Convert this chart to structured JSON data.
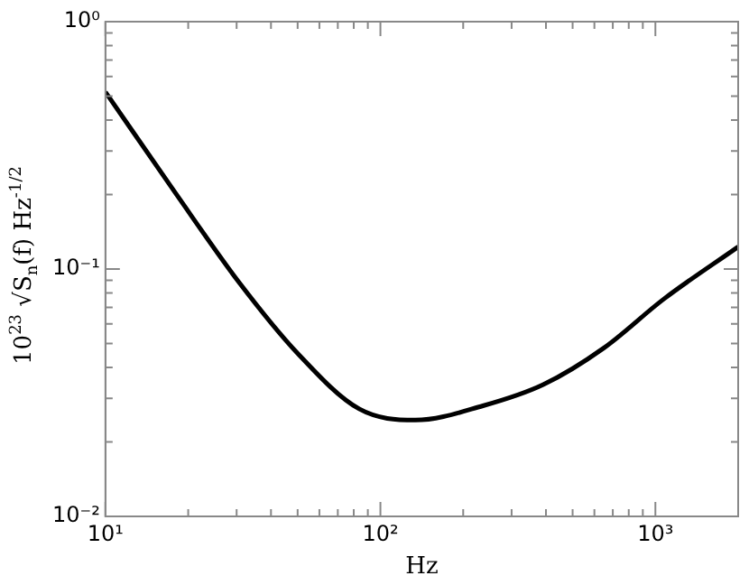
{
  "chart_data": {
    "type": "line",
    "xlabel": "Hz",
    "ylabel": "10$^{23}$ √S$_{n}$(f) Hz$^{-1/2}$",
    "log": "xy",
    "grid": false,
    "legend": false,
    "marker": "none",
    "line_style": "solid",
    "xlim": [
      10,
      2000
    ],
    "ylim": [
      0.01,
      1
    ],
    "xticks": [
      {
        "value": 10,
        "label": "10¹"
      },
      {
        "value": 20,
        "label": null
      },
      {
        "value": 30,
        "label": null
      },
      {
        "value": 40,
        "label": null
      },
      {
        "value": 50,
        "label": null
      },
      {
        "value": 60,
        "label": null
      },
      {
        "value": 70,
        "label": null
      },
      {
        "value": 80,
        "label": null
      },
      {
        "value": 90,
        "label": null
      },
      {
        "value": 100,
        "label": "10²"
      },
      {
        "value": 200,
        "label": null
      },
      {
        "value": 300,
        "label": null
      },
      {
        "value": 400,
        "label": null
      },
      {
        "value": 500,
        "label": null
      },
      {
        "value": 600,
        "label": null
      },
      {
        "value": 700,
        "label": null
      },
      {
        "value": 800,
        "label": null
      },
      {
        "value": 900,
        "label": null
      },
      {
        "value": 1000,
        "label": "10³"
      },
      {
        "value": 2000,
        "label": null
      }
    ],
    "yticks": [
      {
        "value": 0.01,
        "label": "10⁻²"
      },
      {
        "value": 0.02,
        "label": null
      },
      {
        "value": 0.03,
        "label": null
      },
      {
        "value": 0.04,
        "label": null
      },
      {
        "value": 0.05,
        "label": null
      },
      {
        "value": 0.06,
        "label": null
      },
      {
        "value": 0.07,
        "label": null
      },
      {
        "value": 0.08,
        "label": null
      },
      {
        "value": 0.09,
        "label": null
      },
      {
        "value": 0.1,
        "label": "10⁻¹"
      },
      {
        "value": 0.2,
        "label": null
      },
      {
        "value": 0.3,
        "label": null
      },
      {
        "value": 0.4,
        "label": null
      },
      {
        "value": 0.5,
        "label": null
      },
      {
        "value": 0.6,
        "label": null
      },
      {
        "value": 0.7,
        "label": null
      },
      {
        "value": 0.8,
        "label": null
      },
      {
        "value": 0.9,
        "label": null
      },
      {
        "value": 1,
        "label": "10⁰"
      }
    ],
    "series": [
      {
        "color": "#000000",
        "x": [
          10,
          18.2,
          30.3,
          50.2,
          83.7,
          134,
          236,
          391,
          650,
          1074,
          2000
        ],
        "values": [
          0.52,
          0.199,
          0.0897,
          0.0454,
          0.0272,
          0.0245,
          0.028,
          0.0341,
          0.048,
          0.0757,
          0.123
        ]
      }
    ]
  }
}
